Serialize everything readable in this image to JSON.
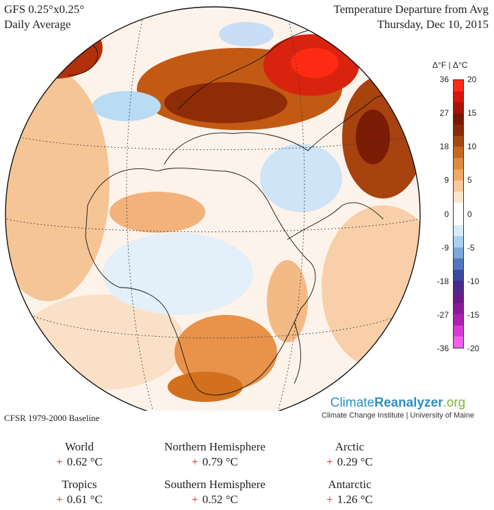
{
  "header": {
    "left_line1": "GFS 0.25°x0.25°",
    "left_line2": "Daily Average",
    "right_line1": "Temperature Departure from Avg",
    "right_line2": "Thursday, Dec 10, 2015"
  },
  "legend": {
    "units": "Δ°F | Δ°C",
    "ticks_f": [
      "36",
      "27",
      "18",
      "9",
      "0",
      "-9",
      "-18",
      "-27",
      "-36"
    ],
    "ticks_c": [
      "20",
      "15",
      "10",
      "5",
      "0",
      "-5",
      "-10",
      "-15",
      "-20"
    ],
    "colors": [
      "#ff2a1a",
      "#d8140e",
      "#a81208",
      "#7a1604",
      "#8a2a06",
      "#a34a10",
      "#c86a1e",
      "#e08a3c",
      "#f0a866",
      "#f8c898",
      "#fde4cc",
      "#ffffff",
      "#ffffff",
      "#d6ebfa",
      "#a8d0f0",
      "#7aa8dc",
      "#5078c0",
      "#3a4aa0",
      "#4a2a8a",
      "#6a1a8a",
      "#8a1a9a",
      "#b020b0",
      "#d83ad8",
      "#f060f0"
    ]
  },
  "baseline": "CFSR 1979-2000 Baseline",
  "brand": {
    "name_part1": "Climate",
    "name_part2": "Reanalyzer",
    "name_part3": ".org",
    "subtitle": "Climate Change Institute | University of Maine"
  },
  "stats": [
    {
      "label": "World",
      "sign": "+",
      "value": "0.62 °C"
    },
    {
      "label": "Northern Hemisphere",
      "sign": "+",
      "value": "0.79 °C"
    },
    {
      "label": "Arctic",
      "sign": "+",
      "value": "0.29 °C"
    },
    {
      "label": "Tropics",
      "sign": "+",
      "value": "0.61 °C"
    },
    {
      "label": "Southern Hemisphere",
      "sign": "+",
      "value": "0.52 °C"
    },
    {
      "label": "Antarctic",
      "sign": "+",
      "value": "1.26 °C"
    }
  ]
}
